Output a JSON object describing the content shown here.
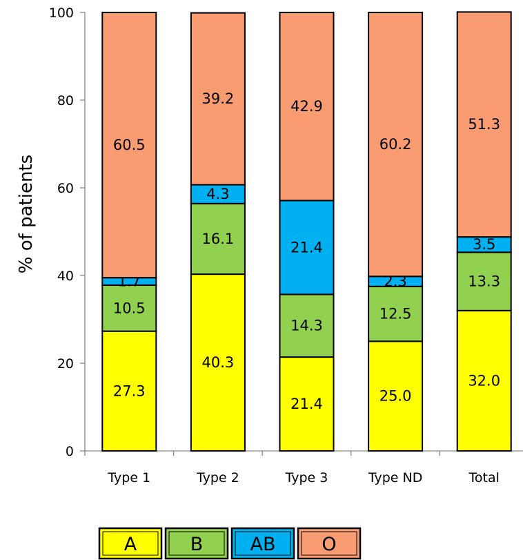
{
  "chart_data": {
    "type": "bar",
    "stacked": true,
    "categories": [
      "Type 1",
      "Type 2",
      "Type 3",
      "Type ND",
      "Total"
    ],
    "series": [
      {
        "name": "A",
        "color": "#ffff00",
        "values": [
          27.3,
          40.3,
          21.4,
          25.0,
          32.0
        ],
        "labels": [
          "27.3",
          "40.3",
          "21.4",
          "25.0",
          "32.0"
        ]
      },
      {
        "name": "B",
        "color": "#92d050",
        "values": [
          10.5,
          16.1,
          14.3,
          12.5,
          13.3
        ],
        "labels": [
          "10.5",
          "16.1",
          "14.3",
          "12.5",
          "13.3"
        ]
      },
      {
        "name": "AB",
        "color": "#00b0f0",
        "values": [
          1.7,
          4.3,
          21.4,
          2.3,
          3.5
        ],
        "labels": [
          "1.7",
          "4.3",
          "21.4",
          "2.3",
          "3.5"
        ]
      },
      {
        "name": "O",
        "color": "#fa9c72",
        "values": [
          60.5,
          39.2,
          42.9,
          60.2,
          51.3
        ],
        "labels": [
          "60.5",
          "39.2",
          "42.9",
          "60.2",
          "51.3"
        ]
      }
    ],
    "title": "",
    "xlabel": "",
    "ylabel": "% of patients",
    "ylim": [
      0,
      100
    ],
    "yticks": [
      "0",
      "20",
      "40",
      "60",
      "80",
      "100"
    ],
    "grid": false,
    "legend_position": "bottom"
  }
}
